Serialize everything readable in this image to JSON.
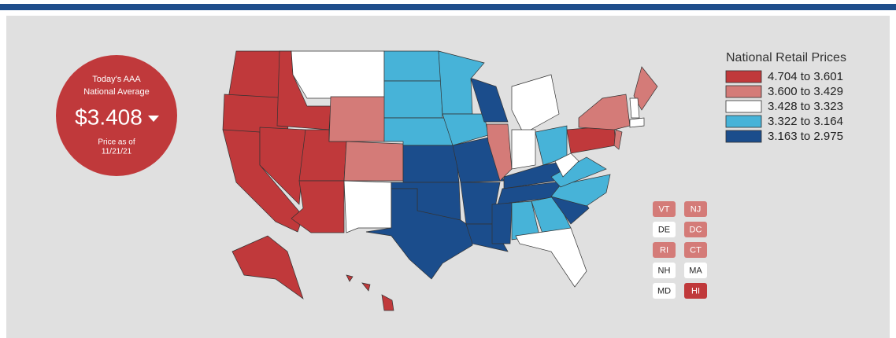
{
  "national_average": {
    "title_line1": "Today's AAA",
    "title_line2": "National Average",
    "price": "$3.408",
    "note_line1": "Price as of",
    "note_line2": "11/21/21"
  },
  "legend": {
    "title": "National Retail Prices",
    "items": [
      {
        "label": "4.704 to 3.601",
        "color": "#c0393b"
      },
      {
        "label": "3.600 to 3.429",
        "color": "#d47b78"
      },
      {
        "label": "3.428 to 3.323",
        "color": "#ffffff"
      },
      {
        "label": "3.322 to 3.164",
        "color": "#47b3d8"
      },
      {
        "label": "3.163 to 2.975",
        "color": "#1b4d8c"
      }
    ]
  },
  "state_boxes": [
    "VT",
    "NJ",
    "DE",
    "DC",
    "RI",
    "CT",
    "NH",
    "MA",
    "MD",
    "HI"
  ]
}
